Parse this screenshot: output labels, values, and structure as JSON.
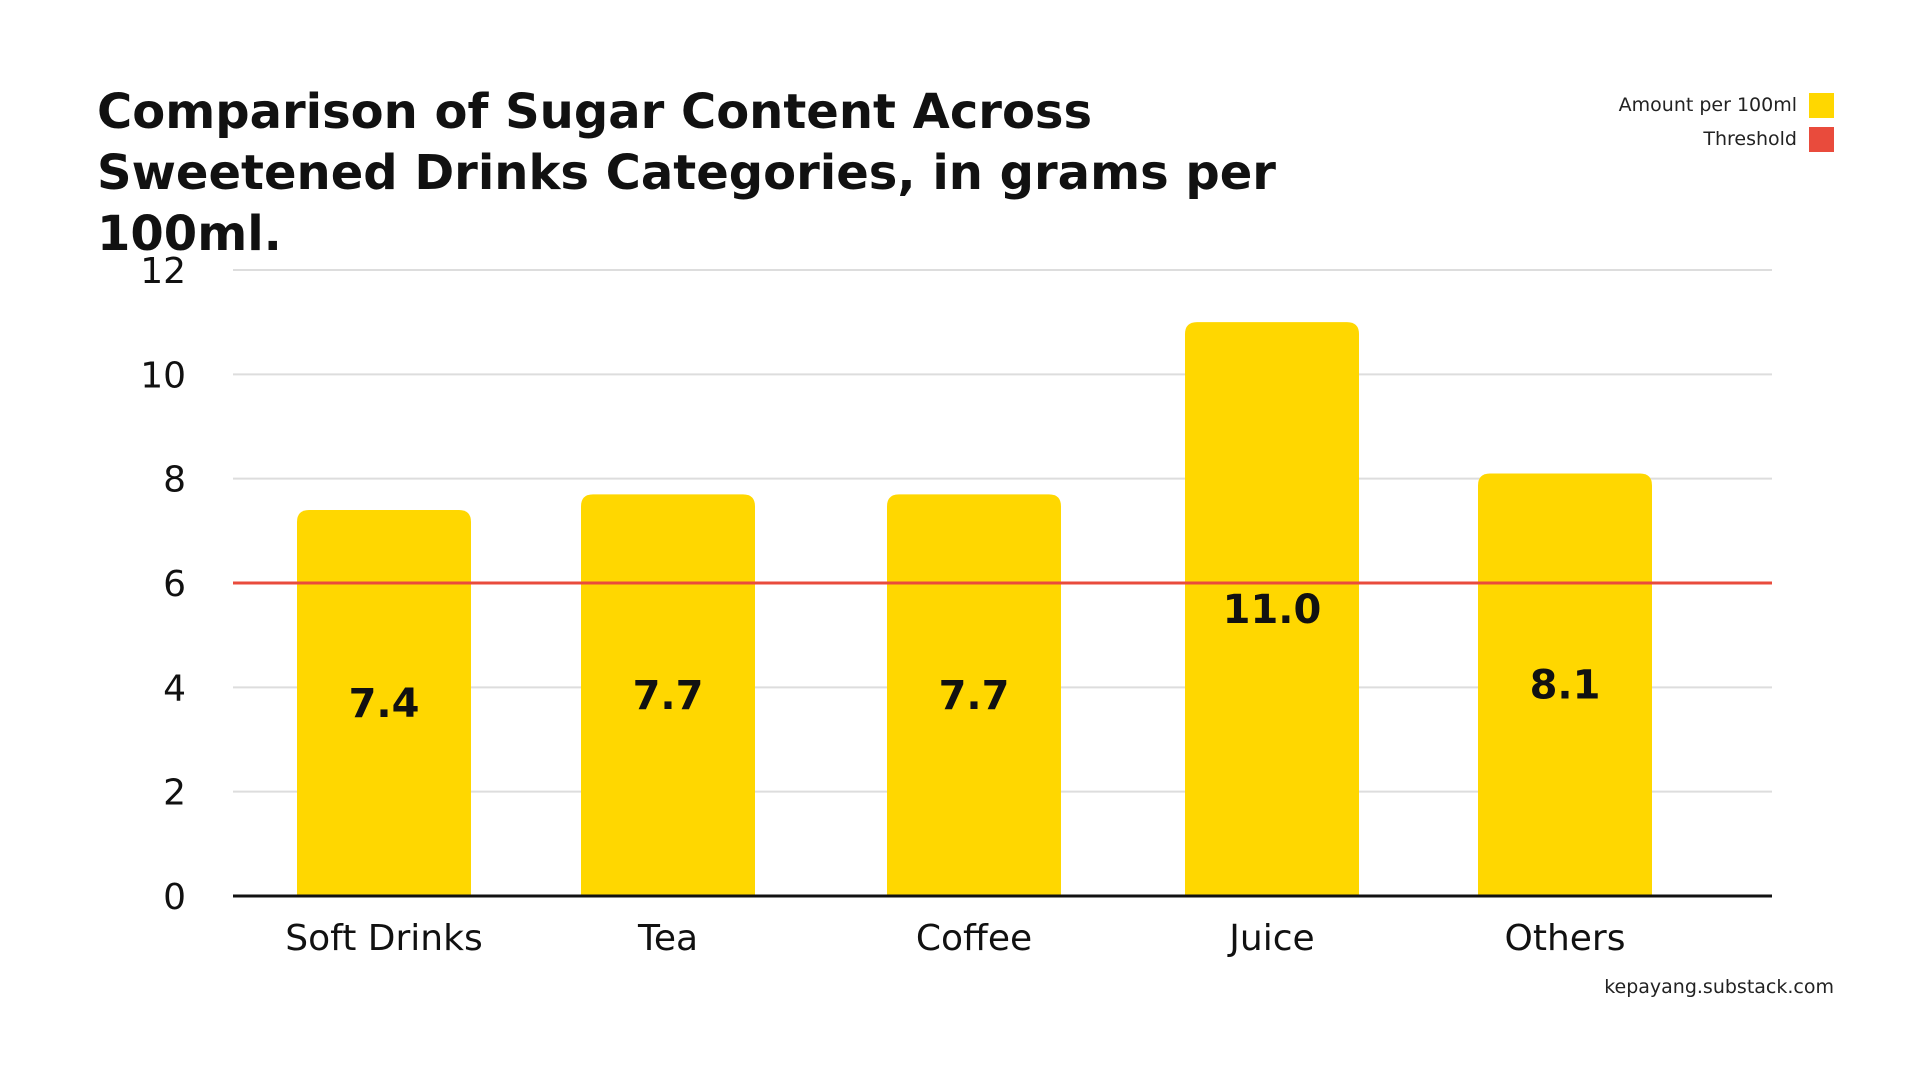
{
  "chart_data": {
    "type": "bar",
    "title": "Comparison of Sugar Content Across Sweetened Drinks Categories, in grams per 100ml.",
    "categories": [
      "Soft Drinks",
      "Tea",
      "Coffee",
      "Juice",
      "Others"
    ],
    "series": [
      {
        "name": "Amount per 100ml",
        "values": [
          7.4,
          7.7,
          7.7,
          11.0,
          8.1
        ]
      }
    ],
    "value_labels": [
      "7.4",
      "7.7",
      "7.7",
      "11.0",
      "8.1"
    ],
    "threshold": {
      "name": "Threshold",
      "value": 6
    },
    "y_ticks": [
      "0",
      "2",
      "4",
      "6",
      "8",
      "10",
      "12"
    ],
    "ylim": [
      0,
      12
    ],
    "grid": true,
    "legend_position": "top-right",
    "colors": {
      "bar": "#FFD700",
      "threshold": "#E94B3C",
      "grid": "#DDDDDD",
      "axis": "#111111"
    }
  },
  "legend": [
    {
      "label": "Amount per 100ml",
      "color": "#FFD700"
    },
    {
      "label": "Threshold",
      "color": "#E94B3C"
    }
  ],
  "source": "kepayang.substack.com"
}
